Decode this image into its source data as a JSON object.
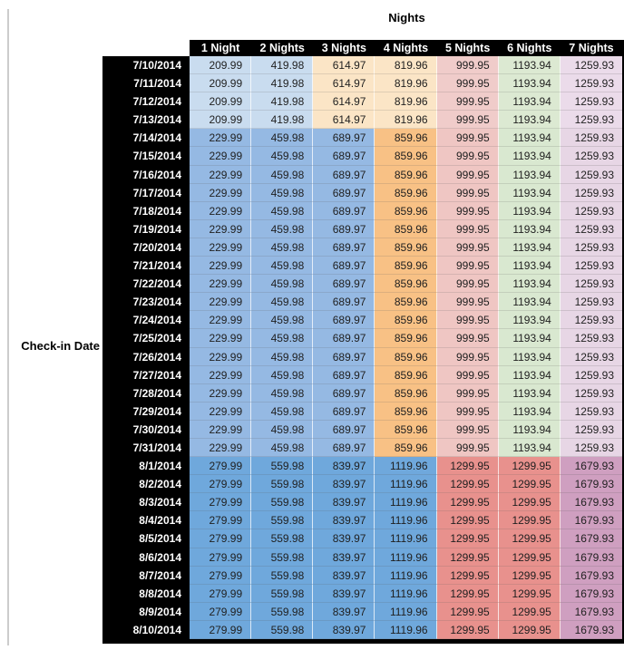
{
  "title": "Nights",
  "side_label": "Check-in Date",
  "colors": {
    "header_bg": "#000000",
    "header_text": "#ffffff",
    "cell_text": "#1f1f1f",
    "gutter_line": "#cccccc",
    "table_border": "#000000"
  },
  "chart_data": {
    "type": "table",
    "title": "Nights",
    "row_axis_label": "Check-in Date",
    "columns": [
      "1 Night",
      "2 Nights",
      "3 Nights",
      "4 Nights",
      "5 Nights",
      "6 Nights",
      "7 Nights"
    ],
    "bands": {
      "early": {
        "date_range": "7/10/2014 - 7/13/2014",
        "cell_colors": [
          "#c9dcef",
          "#c9dcef",
          "#fbe5c6",
          "#fbe5c6",
          "#f0ccca",
          "#dce9d2",
          "#ebdbea"
        ]
      },
      "mid": {
        "date_range": "7/14/2014 - 7/31/2014",
        "cell_colors": [
          "#95b9e3",
          "#95b9e3",
          "#95b9e3",
          "#f8c185",
          "#efc6c3",
          "#d9e8d0",
          "#e7d6e5"
        ]
      },
      "peak": {
        "date_range": "8/1/2014 - 8/10/2014",
        "cell_colors": [
          "#6fa8dc",
          "#6fa8dc",
          "#6fa8dc",
          "#6fa8dc",
          "#e8918d",
          "#e8918d",
          "#cf9fc0"
        ]
      }
    },
    "rows": [
      {
        "date": "7/10/2014",
        "band": "early",
        "values": [
          209.99,
          419.98,
          614.97,
          819.96,
          999.95,
          1193.94,
          1259.93
        ]
      },
      {
        "date": "7/11/2014",
        "band": "early",
        "values": [
          209.99,
          419.98,
          614.97,
          819.96,
          999.95,
          1193.94,
          1259.93
        ]
      },
      {
        "date": "7/12/2014",
        "band": "early",
        "values": [
          209.99,
          419.98,
          614.97,
          819.96,
          999.95,
          1193.94,
          1259.93
        ]
      },
      {
        "date": "7/13/2014",
        "band": "early",
        "values": [
          209.99,
          419.98,
          614.97,
          819.96,
          999.95,
          1193.94,
          1259.93
        ]
      },
      {
        "date": "7/14/2014",
        "band": "mid",
        "values": [
          229.99,
          459.98,
          689.97,
          859.96,
          999.95,
          1193.94,
          1259.93
        ]
      },
      {
        "date": "7/15/2014",
        "band": "mid",
        "values": [
          229.99,
          459.98,
          689.97,
          859.96,
          999.95,
          1193.94,
          1259.93
        ]
      },
      {
        "date": "7/16/2014",
        "band": "mid",
        "values": [
          229.99,
          459.98,
          689.97,
          859.96,
          999.95,
          1193.94,
          1259.93
        ]
      },
      {
        "date": "7/17/2014",
        "band": "mid",
        "values": [
          229.99,
          459.98,
          689.97,
          859.96,
          999.95,
          1193.94,
          1259.93
        ]
      },
      {
        "date": "7/18/2014",
        "band": "mid",
        "values": [
          229.99,
          459.98,
          689.97,
          859.96,
          999.95,
          1193.94,
          1259.93
        ]
      },
      {
        "date": "7/19/2014",
        "band": "mid",
        "values": [
          229.99,
          459.98,
          689.97,
          859.96,
          999.95,
          1193.94,
          1259.93
        ]
      },
      {
        "date": "7/20/2014",
        "band": "mid",
        "values": [
          229.99,
          459.98,
          689.97,
          859.96,
          999.95,
          1193.94,
          1259.93
        ]
      },
      {
        "date": "7/21/2014",
        "band": "mid",
        "values": [
          229.99,
          459.98,
          689.97,
          859.96,
          999.95,
          1193.94,
          1259.93
        ]
      },
      {
        "date": "7/22/2014",
        "band": "mid",
        "values": [
          229.99,
          459.98,
          689.97,
          859.96,
          999.95,
          1193.94,
          1259.93
        ]
      },
      {
        "date": "7/23/2014",
        "band": "mid",
        "values": [
          229.99,
          459.98,
          689.97,
          859.96,
          999.95,
          1193.94,
          1259.93
        ]
      },
      {
        "date": "7/24/2014",
        "band": "mid",
        "values": [
          229.99,
          459.98,
          689.97,
          859.96,
          999.95,
          1193.94,
          1259.93
        ]
      },
      {
        "date": "7/25/2014",
        "band": "mid",
        "values": [
          229.99,
          459.98,
          689.97,
          859.96,
          999.95,
          1193.94,
          1259.93
        ]
      },
      {
        "date": "7/26/2014",
        "band": "mid",
        "values": [
          229.99,
          459.98,
          689.97,
          859.96,
          999.95,
          1193.94,
          1259.93
        ]
      },
      {
        "date": "7/27/2014",
        "band": "mid",
        "values": [
          229.99,
          459.98,
          689.97,
          859.96,
          999.95,
          1193.94,
          1259.93
        ]
      },
      {
        "date": "7/28/2014",
        "band": "mid",
        "values": [
          229.99,
          459.98,
          689.97,
          859.96,
          999.95,
          1193.94,
          1259.93
        ]
      },
      {
        "date": "7/29/2014",
        "band": "mid",
        "values": [
          229.99,
          459.98,
          689.97,
          859.96,
          999.95,
          1193.94,
          1259.93
        ]
      },
      {
        "date": "7/30/2014",
        "band": "mid",
        "values": [
          229.99,
          459.98,
          689.97,
          859.96,
          999.95,
          1193.94,
          1259.93
        ]
      },
      {
        "date": "7/31/2014",
        "band": "mid",
        "values": [
          229.99,
          459.98,
          689.97,
          859.96,
          999.95,
          1193.94,
          1259.93
        ]
      },
      {
        "date": "8/1/2014",
        "band": "peak",
        "values": [
          279.99,
          559.98,
          839.97,
          1119.96,
          1299.95,
          1299.95,
          1679.93
        ]
      },
      {
        "date": "8/2/2014",
        "band": "peak",
        "values": [
          279.99,
          559.98,
          839.97,
          1119.96,
          1299.95,
          1299.95,
          1679.93
        ]
      },
      {
        "date": "8/3/2014",
        "band": "peak",
        "values": [
          279.99,
          559.98,
          839.97,
          1119.96,
          1299.95,
          1299.95,
          1679.93
        ]
      },
      {
        "date": "8/4/2014",
        "band": "peak",
        "values": [
          279.99,
          559.98,
          839.97,
          1119.96,
          1299.95,
          1299.95,
          1679.93
        ]
      },
      {
        "date": "8/5/2014",
        "band": "peak",
        "values": [
          279.99,
          559.98,
          839.97,
          1119.96,
          1299.95,
          1299.95,
          1679.93
        ]
      },
      {
        "date": "8/6/2014",
        "band": "peak",
        "values": [
          279.99,
          559.98,
          839.97,
          1119.96,
          1299.95,
          1299.95,
          1679.93
        ]
      },
      {
        "date": "8/7/2014",
        "band": "peak",
        "values": [
          279.99,
          559.98,
          839.97,
          1119.96,
          1299.95,
          1299.95,
          1679.93
        ]
      },
      {
        "date": "8/8/2014",
        "band": "peak",
        "values": [
          279.99,
          559.98,
          839.97,
          1119.96,
          1299.95,
          1299.95,
          1679.93
        ]
      },
      {
        "date": "8/9/2014",
        "band": "peak",
        "values": [
          279.99,
          559.98,
          839.97,
          1119.96,
          1299.95,
          1299.95,
          1679.93
        ]
      },
      {
        "date": "8/10/2014",
        "band": "peak",
        "values": [
          279.99,
          559.98,
          839.97,
          1119.96,
          1299.95,
          1299.95,
          1679.93
        ]
      }
    ]
  }
}
